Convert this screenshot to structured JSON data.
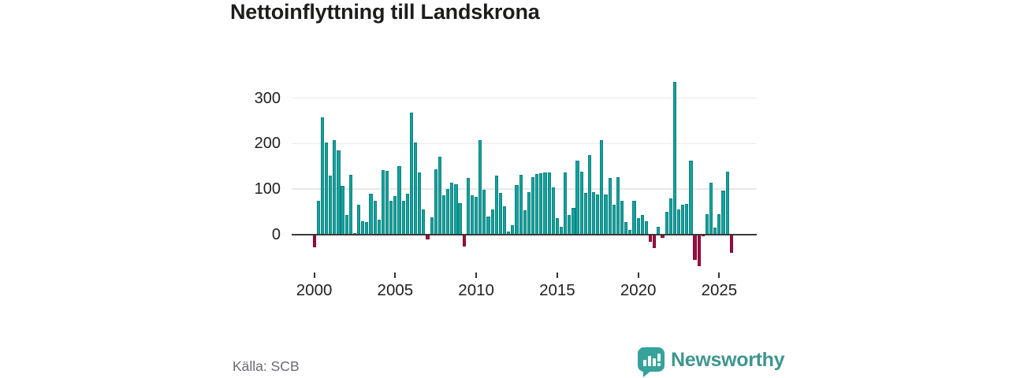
{
  "title": "Nettoinflyttning till Landskrona",
  "source": "Källa: SCB",
  "branding": {
    "name": "Newsworthy",
    "icon": "newsworthy-speech-bubble-bar-chart-icon"
  },
  "colors": {
    "positive_bar": "#14a29e",
    "negative_bar": "#9c0c41",
    "axis_line": "#3a3a3a",
    "gridline": "#e8e8e8",
    "text": "#212121",
    "muted_text": "#6a6a73",
    "brand_teal": "#3e968f",
    "brand_icon_teal": "#35a39b"
  },
  "chart_data": {
    "type": "bar",
    "title": "Nettoinflyttning till Landskrona",
    "xlabel": "",
    "ylabel": "",
    "x_period": "quarterly",
    "x_start": "2000 Q1",
    "x_end": "2025 Q4",
    "x_tick_labels": [
      "2000",
      "2005",
      "2010",
      "2015",
      "2020",
      "2025"
    ],
    "x_tick_years": [
      2000,
      2005,
      2010,
      2015,
      2020,
      2025
    ],
    "y_ticks": [
      0,
      100,
      200,
      300
    ],
    "ylim": [
      -80,
      350
    ],
    "grid": true,
    "legend": "none",
    "series": [
      {
        "name": "Nettoinflyttning",
        "values": [
          -28,
          74,
          258,
          202,
          129,
          208,
          185,
          107,
          43,
          132,
          3,
          65,
          29,
          27,
          90,
          74,
          33,
          142,
          140,
          75,
          84,
          150,
          74,
          90,
          269,
          203,
          137,
          55,
          -10,
          38,
          143,
          171,
          86,
          100,
          115,
          110,
          69,
          -26,
          124,
          86,
          83,
          207,
          99,
          40,
          55,
          130,
          91,
          63,
          7,
          21,
          109,
          131,
          54,
          93,
          127,
          133,
          135,
          136,
          137,
          103,
          37,
          17,
          136,
          43,
          58,
          163,
          139,
          91,
          174,
          94,
          89,
          207,
          89,
          125,
          65,
          126,
          75,
          27,
          11,
          74,
          36,
          44,
          30,
          -16,
          -30,
          18,
          -7,
          50,
          80,
          335,
          56,
          66,
          68,
          162,
          -55,
          -70,
          -4,
          45,
          114,
          16,
          45,
          97,
          138,
          -40
        ]
      }
    ]
  }
}
